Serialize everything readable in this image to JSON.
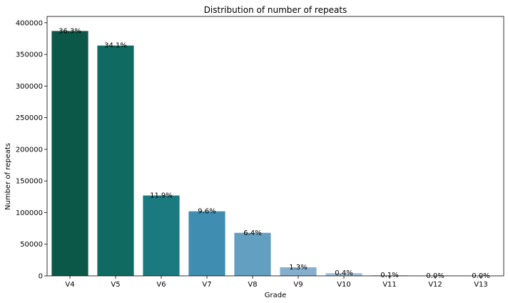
{
  "chart_data": {
    "type": "bar",
    "title": "Distribution of number of repeats",
    "xlabel": "Grade",
    "ylabel": "Number of repeats",
    "categories": [
      "V4",
      "V5",
      "V6",
      "V7",
      "V8",
      "V9",
      "V10",
      "V11",
      "V12",
      "V13"
    ],
    "values": [
      387000,
      364000,
      127000,
      102000,
      68000,
      13500,
      4300,
      1100,
      150,
      30
    ],
    "data_labels": [
      "36.3%",
      "34.1%",
      "11.9%",
      "9.6%",
      "6.4%",
      "1.3%",
      "0.4%",
      "0.1%",
      "0.0%",
      "0.0%"
    ],
    "colors": [
      "#0b5848",
      "#0f6b61",
      "#1b7a80",
      "#3f8db0",
      "#639fc0",
      "#86afcd",
      "#a4c1da",
      "#c0d3e6",
      "#d7e3ef",
      "#e6edf5"
    ],
    "ylim": [
      0,
      410000
    ],
    "yticks": [
      0,
      50000,
      100000,
      150000,
      200000,
      250000,
      300000,
      350000,
      400000
    ],
    "grid": false,
    "legend": "none"
  }
}
